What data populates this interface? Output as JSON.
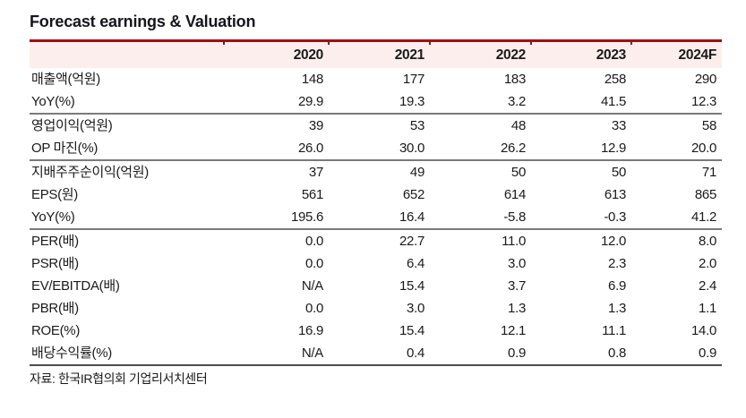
{
  "title": "Forecast earnings & Valuation",
  "table": {
    "columns": [
      "",
      "2020",
      "2021",
      "2022",
      "2023",
      "2024F"
    ],
    "rows": [
      {
        "label": "매출액(억원)",
        "values": [
          "148",
          "177",
          "183",
          "258",
          "290"
        ],
        "section_end": false
      },
      {
        "label": "YoY(%)",
        "values": [
          "29.9",
          "19.3",
          "3.2",
          "41.5",
          "12.3"
        ],
        "section_end": true
      },
      {
        "label": "영업이익(억원)",
        "values": [
          "39",
          "53",
          "48",
          "33",
          "58"
        ],
        "section_end": false
      },
      {
        "label": "OP 마진(%)",
        "values": [
          "26.0",
          "30.0",
          "26.2",
          "12.9",
          "20.0"
        ],
        "section_end": true
      },
      {
        "label": "지배주주순이익(억원)",
        "values": [
          "37",
          "49",
          "50",
          "50",
          "71"
        ],
        "section_end": false
      },
      {
        "label": "EPS(원)",
        "values": [
          "561",
          "652",
          "614",
          "613",
          "865"
        ],
        "section_end": false
      },
      {
        "label": "YoY(%)",
        "values": [
          "195.6",
          "16.4",
          "-5.8",
          "-0.3",
          "41.2"
        ],
        "section_end": true
      },
      {
        "label": "PER(배)",
        "values": [
          "0.0",
          "22.7",
          "11.0",
          "12.0",
          "8.0"
        ],
        "section_end": false
      },
      {
        "label": "PSR(배)",
        "values": [
          "0.0",
          "6.4",
          "3.0",
          "2.3",
          "2.0"
        ],
        "section_end": false
      },
      {
        "label": "EV/EBITDA(배)",
        "values": [
          "N/A",
          "15.4",
          "3.7",
          "6.9",
          "2.4"
        ],
        "section_end": false
      },
      {
        "label": "PBR(배)",
        "values": [
          "0.0",
          "3.0",
          "1.3",
          "1.3",
          "1.1"
        ],
        "section_end": false
      },
      {
        "label": "ROE(%)",
        "values": [
          "16.9",
          "15.4",
          "12.1",
          "11.1",
          "14.0"
        ],
        "section_end": false
      },
      {
        "label": "배당수익률(%)",
        "values": [
          "N/A",
          "0.4",
          "0.9",
          "0.8",
          "0.9"
        ],
        "section_end": false
      }
    ]
  },
  "footer": {
    "source": "자료: 한국IR협의회 기업리서치센터"
  },
  "colors": {
    "accent_red": "#9b1116",
    "header_bg": "#fbeeec",
    "separator_gray": "#7a7a7a",
    "bottom_line": "#4d4d4d",
    "text": "#1a1a1a"
  }
}
